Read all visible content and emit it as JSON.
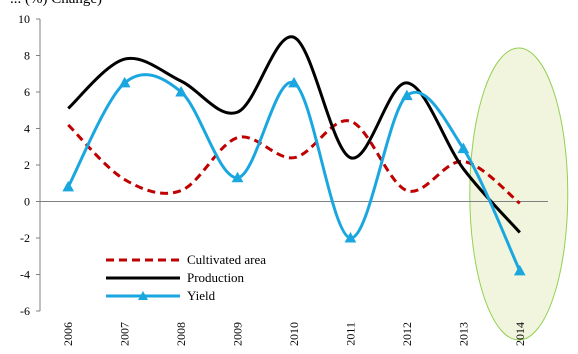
{
  "header_fragment": "... (%) Change)",
  "chart_data": {
    "type": "line",
    "title": "",
    "xlabel": "",
    "ylabel": "",
    "categories": [
      "2006",
      "2007",
      "2008",
      "2009",
      "2010",
      "2011",
      "2012",
      "2013",
      "2014"
    ],
    "ylim": [
      -6,
      10
    ],
    "yticks": [
      -6,
      -4,
      -2,
      0,
      2,
      4,
      6,
      8,
      10
    ],
    "grid": false,
    "legend_position": "bottom-left",
    "highlight": {
      "category": "2014",
      "shape": "ellipse",
      "fill": "#f2f5dd",
      "stroke": "#92d050"
    },
    "series": [
      {
        "name": "Cultivated area",
        "values": [
          4.2,
          1.2,
          0.6,
          3.5,
          2.4,
          4.4,
          0.6,
          2.2,
          -0.1
        ],
        "color": "#c00000",
        "style": "dashed",
        "marker": "none"
      },
      {
        "name": "Production",
        "values": [
          5.1,
          7.8,
          6.6,
          4.9,
          9.0,
          2.4,
          6.5,
          1.8,
          -1.7
        ],
        "color": "#000000",
        "style": "solid",
        "marker": "none"
      },
      {
        "name": "Yield",
        "values": [
          0.8,
          6.5,
          6.0,
          1.3,
          6.5,
          -2.0,
          5.8,
          2.9,
          -3.8
        ],
        "color": "#1aa7e0",
        "style": "solid",
        "marker": "triangle"
      }
    ]
  }
}
